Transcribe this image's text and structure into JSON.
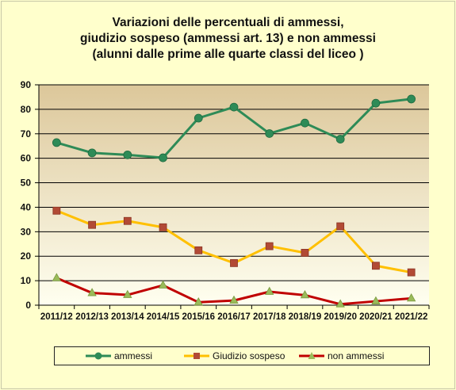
{
  "title": {
    "line1": "Variazioni delle percentuali di ammessi,",
    "line2": "giudizio sospeso (ammessi art. 13) e non ammessi",
    "line3": "(alunni dalle prime alle quarte classi del liceo )"
  },
  "chart_data": {
    "type": "line",
    "title": "Variazioni delle percentuali di ammessi, giudizio sospeso (ammessi art. 13) e non ammessi (alunni dalle prime alle quarte classi del liceo )",
    "categories": [
      "2011/12",
      "2012/13",
      "2013/14",
      "2014/15",
      "2015/16",
      "2016/17",
      "2017/18",
      "2018/19",
      "2019/20",
      "2020/21",
      "2021/22"
    ],
    "ylim": [
      0,
      90
    ],
    "yticks": [
      0,
      10,
      20,
      30,
      40,
      50,
      60,
      70,
      80,
      90
    ],
    "grid": true,
    "legend_position": "bottom",
    "series": [
      {
        "name": "ammessi",
        "line_color": "#2e8b57",
        "marker": "circle",
        "marker_color": "#2e8b57",
        "values": [
          66.4,
          62.2,
          61.4,
          60.2,
          76.4,
          80.9,
          70.1,
          74.4,
          67.8,
          82.5,
          84.2
        ]
      },
      {
        "name": "Giudizio sospeso",
        "line_color": "#ffc000",
        "marker": "square",
        "marker_color": "#b24a35",
        "values": [
          38.6,
          32.8,
          34.4,
          31.8,
          22.4,
          17.2,
          24.1,
          21.4,
          32.2,
          16.1,
          13.4
        ]
      },
      {
        "name": "non ammessi",
        "line_color": "#c00000",
        "marker": "triangle",
        "marker_color": "#9bbb59",
        "values": [
          11.1,
          5.0,
          4.2,
          8.1,
          1.2,
          1.9,
          5.5,
          4.1,
          0.4,
          1.6,
          2.8
        ]
      }
    ]
  }
}
